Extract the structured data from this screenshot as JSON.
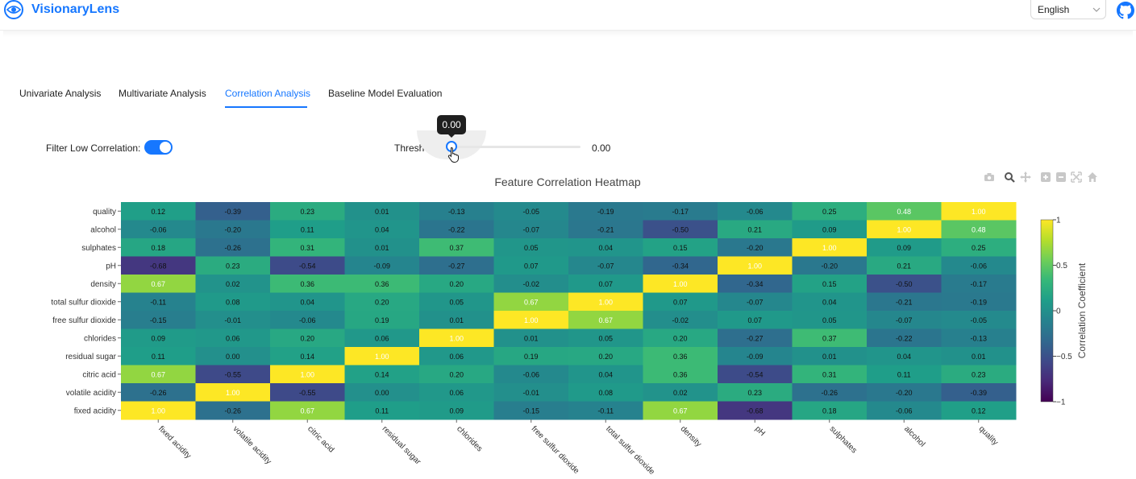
{
  "header": {
    "logo_icon": "eye-icon",
    "app_name": "VisionaryLens",
    "language": "English",
    "github_icon": "github-icon"
  },
  "tabs": [
    {
      "label": "Univariate Analysis",
      "active": false
    },
    {
      "label": "Multivariate Analysis",
      "active": false
    },
    {
      "label": "Correlation Analysis",
      "active": true
    },
    {
      "label": "Baseline Model Evaluation",
      "active": false
    }
  ],
  "controls": {
    "filter_label": "Filter Low Correlation:",
    "filter_on": true,
    "threshold_label": "Threshold:",
    "threshold_value": "0.00",
    "tooltip_value": "0.00",
    "slider_level": 0
  },
  "modebar": {
    "icons": [
      "camera-icon",
      "zoom-icon",
      "pan-icon",
      "zoom-in-icon",
      "zoom-out-icon",
      "autoscale-icon",
      "reset-axes-icon"
    ]
  },
  "chart_data": {
    "type": "heatmap",
    "title": "Feature Correlation Heatmap",
    "colorscale": "viridis",
    "zmin": -1,
    "zmax": 1,
    "colorbar_title": "Correlation Coefficient",
    "colorbar_ticks": [
      "1",
      "0.5",
      "0",
      "−0.5",
      "−1"
    ],
    "x_labels": [
      "fixed acidity",
      "volatile acidity",
      "citric acid",
      "residual sugar",
      "chlorides",
      "free sulfur dioxide",
      "total sulfur dioxide",
      "density",
      "pH",
      "sulphates",
      "alcohol",
      "quality"
    ],
    "y_labels": [
      "quality",
      "alcohol",
      "sulphates",
      "pH",
      "density",
      "total sulfur dioxide",
      "free sulfur dioxide",
      "chlorides",
      "residual sugar",
      "citric acid",
      "volatile acidity",
      "fixed acidity"
    ],
    "z": [
      [
        "0.12",
        "-0.39",
        "0.23",
        "0.01",
        "-0.13",
        "-0.05",
        "-0.19",
        "-0.17",
        "-0.06",
        "0.25",
        "0.48",
        "1.00"
      ],
      [
        "-0.06",
        "-0.20",
        "0.11",
        "0.04",
        "-0.22",
        "-0.07",
        "-0.21",
        "-0.50",
        "0.21",
        "0.09",
        "1.00",
        "0.48"
      ],
      [
        "0.18",
        "-0.26",
        "0.31",
        "0.01",
        "0.37",
        "0.05",
        "0.04",
        "0.15",
        "-0.20",
        "1.00",
        "0.09",
        "0.25"
      ],
      [
        "-0.68",
        "0.23",
        "-0.54",
        "-0.09",
        "-0.27",
        "0.07",
        "-0.07",
        "-0.34",
        "1.00",
        "-0.20",
        "0.21",
        "-0.06"
      ],
      [
        "0.67",
        "0.02",
        "0.36",
        "0.36",
        "0.20",
        "-0.02",
        "0.07",
        "1.00",
        "-0.34",
        "0.15",
        "-0.50",
        "-0.17"
      ],
      [
        "-0.11",
        "0.08",
        "0.04",
        "0.20",
        "0.05",
        "0.67",
        "1.00",
        "0.07",
        "-0.07",
        "0.04",
        "-0.21",
        "-0.19"
      ],
      [
        "-0.15",
        "-0.01",
        "-0.06",
        "0.19",
        "0.01",
        "1.00",
        "0.67",
        "-0.02",
        "0.07",
        "0.05",
        "-0.07",
        "-0.05"
      ],
      [
        "0.09",
        "0.06",
        "0.20",
        "0.06",
        "1.00",
        "0.01",
        "0.05",
        "0.20",
        "-0.27",
        "0.37",
        "-0.22",
        "-0.13"
      ],
      [
        "0.11",
        "0.00",
        "0.14",
        "1.00",
        "0.06",
        "0.19",
        "0.20",
        "0.36",
        "-0.09",
        "0.01",
        "0.04",
        "0.01"
      ],
      [
        "0.67",
        "-0.55",
        "1.00",
        "0.14",
        "0.20",
        "-0.06",
        "0.04",
        "0.36",
        "-0.54",
        "0.31",
        "0.11",
        "0.23"
      ],
      [
        "-0.26",
        "1.00",
        "-0.55",
        "0.00",
        "0.06",
        "-0.01",
        "0.08",
        "0.02",
        "0.23",
        "-0.26",
        "-0.20",
        "-0.39"
      ],
      [
        "1.00",
        "-0.26",
        "0.67",
        "0.11",
        "0.09",
        "-0.15",
        "-0.11",
        "0.67",
        "-0.68",
        "0.18",
        "-0.06",
        "0.12"
      ]
    ]
  },
  "colors": {
    "accent": "#1677ff",
    "text": "#222222"
  }
}
